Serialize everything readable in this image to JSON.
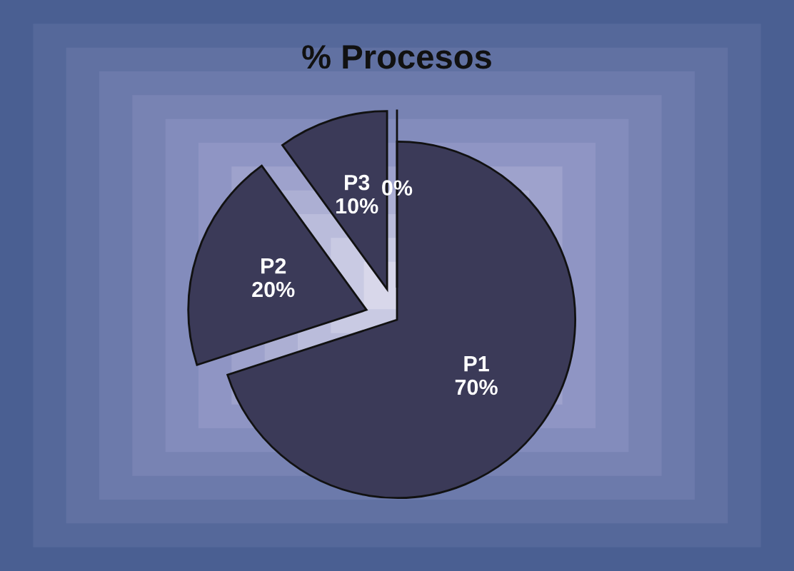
{
  "chart_data": {
    "type": "pie",
    "title": "% Procesos",
    "categories": [
      "P1",
      "P2",
      "P3",
      null
    ],
    "values": [
      70,
      20,
      10,
      0
    ],
    "colors": [
      "#3b3a58",
      "#3b3a58",
      "#3b3a58",
      "#3b3a58"
    ],
    "value_labels": [
      "70%",
      "20%",
      "10%",
      "0%"
    ],
    "legend": false
  }
}
